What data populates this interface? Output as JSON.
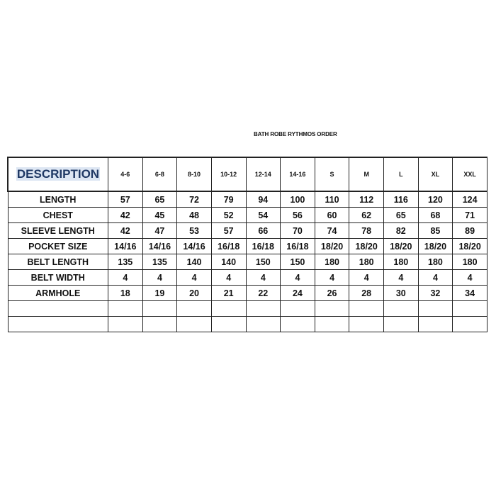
{
  "title": "BATH ROBE RYTHMOS ORDER",
  "table": {
    "header_label": "DESCRIPTION",
    "columns": [
      "4-6",
      "6-8",
      "8-10",
      "10-12",
      "12-14",
      "14-16",
      "S",
      "M",
      "L",
      "XL",
      "XXL"
    ],
    "rows": [
      {
        "label": "LENGTH",
        "values": [
          "57",
          "65",
          "72",
          "79",
          "94",
          "100",
          "110",
          "112",
          "116",
          "120",
          "124"
        ]
      },
      {
        "label": "CHEST",
        "values": [
          "42",
          "45",
          "48",
          "52",
          "54",
          "56",
          "60",
          "62",
          "65",
          "68",
          "71"
        ]
      },
      {
        "label": "SLEEVE LENGTH",
        "values": [
          "42",
          "47",
          "53",
          "57",
          "66",
          "70",
          "74",
          "78",
          "82",
          "85",
          "89"
        ]
      },
      {
        "label": "POCKET SIZE",
        "values": [
          "14/16",
          "14/16",
          "14/16",
          "16/18",
          "16/18",
          "16/18",
          "18/20",
          "18/20",
          "18/20",
          "18/20",
          "18/20"
        ]
      },
      {
        "label": "BELT LENGTH",
        "values": [
          "135",
          "135",
          "140",
          "140",
          "150",
          "150",
          "180",
          "180",
          "180",
          "180",
          "180"
        ]
      },
      {
        "label": "BELT WIDTH",
        "values": [
          "4",
          "4",
          "4",
          "4",
          "4",
          "4",
          "4",
          "4",
          "4",
          "4",
          "4"
        ]
      },
      {
        "label": "ARMHOLE",
        "values": [
          "18",
          "19",
          "20",
          "21",
          "22",
          "24",
          "26",
          "28",
          "30",
          "32",
          "34"
        ]
      }
    ],
    "empty_rows": 2
  },
  "colors": {
    "header_text": "#1f3864",
    "header_highlight": "#dde6f3"
  }
}
